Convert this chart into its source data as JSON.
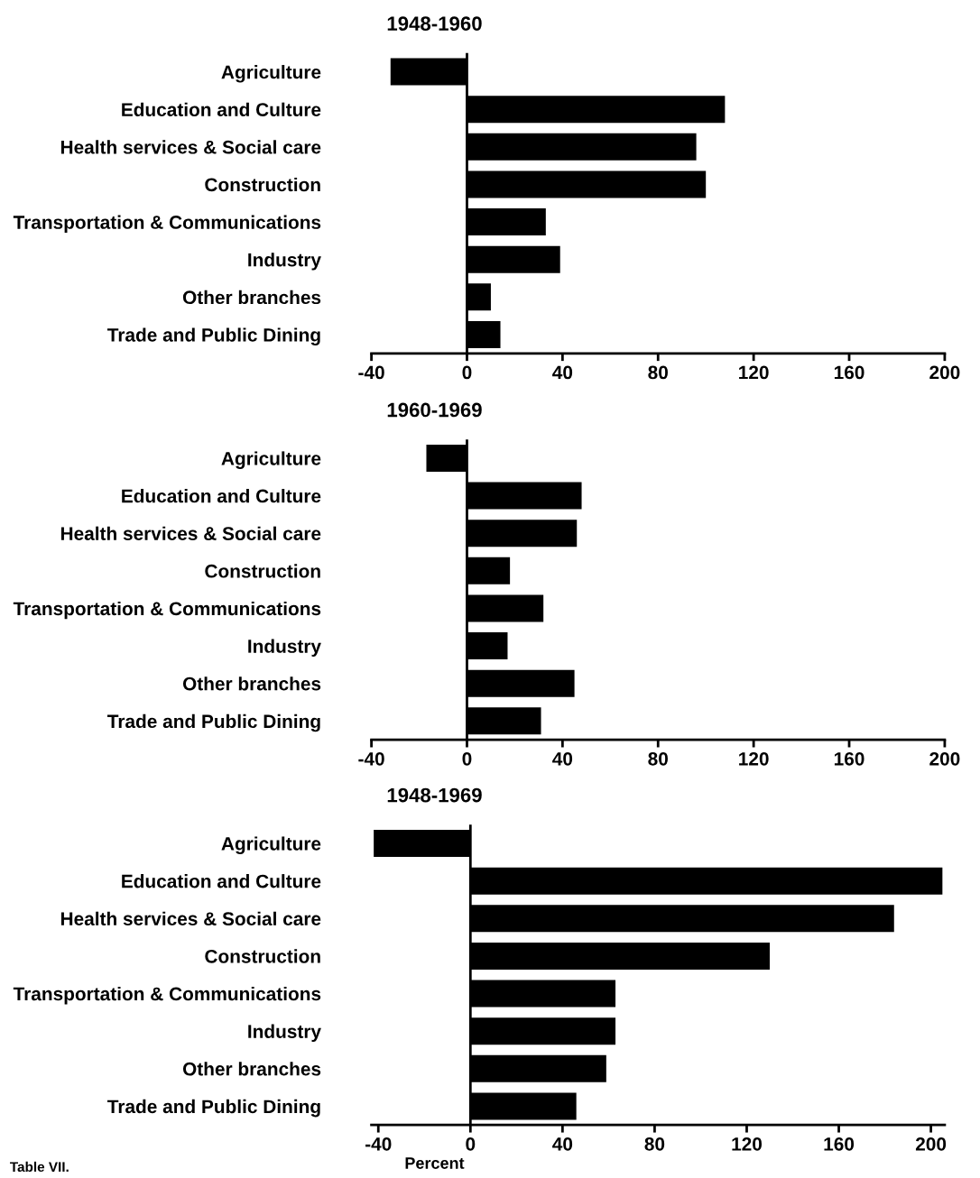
{
  "chart_data": [
    {
      "type": "bar",
      "orientation": "horizontal",
      "title": "1948-1960",
      "categories": [
        "Agriculture",
        "Education and Culture",
        "Health services & Social care",
        "Construction",
        "Transportation & Communications",
        "Industry",
        "Other branches",
        "Trade and Public Dining"
      ],
      "values": [
        -32,
        108,
        96,
        100,
        33,
        39,
        10,
        14
      ],
      "color": "#000000",
      "xlim": [
        -40,
        200
      ],
      "xticks": [
        -40,
        0,
        40,
        80,
        120,
        160,
        200
      ],
      "ref_lines": [
        {
          "axis": "x",
          "value": 0,
          "color": "#000000"
        }
      ],
      "grid": false,
      "legend": false
    },
    {
      "type": "bar",
      "orientation": "horizontal",
      "title": "1960-1969",
      "categories": [
        "Agriculture",
        "Education and Culture",
        "Health services & Social care",
        "Construction",
        "Transportation & Communications",
        "Industry",
        "Other branches",
        "Trade and Public Dining"
      ],
      "values": [
        -17,
        48,
        46,
        18,
        32,
        17,
        45,
        31
      ],
      "color": "#000000",
      "xlim": [
        -40,
        200
      ],
      "xticks": [
        -40,
        0,
        40,
        80,
        120,
        160,
        200
      ],
      "ref_lines": [
        {
          "axis": "x",
          "value": 0,
          "color": "#000000"
        }
      ],
      "grid": false,
      "legend": false
    },
    {
      "type": "bar",
      "orientation": "horizontal",
      "title": "1948-1969",
      "xlabel": "Percent",
      "categories": [
        "Agriculture",
        "Education and Culture",
        "Health services & Social care",
        "Construction",
        "Transportation & Communications",
        "Industry",
        "Other branches",
        "Trade and Public Dining"
      ],
      "values": [
        -42,
        205,
        184,
        130,
        63,
        63,
        59,
        46
      ],
      "color": "#000000",
      "xlim": [
        -43,
        206
      ],
      "xticks": [
        -40,
        0,
        40,
        80,
        120,
        160,
        200
      ],
      "ref_lines": [
        {
          "axis": "x",
          "value": 0,
          "color": "#000000"
        }
      ],
      "grid": false,
      "legend": false,
      "annotations": [
        "Table VII."
      ]
    }
  ]
}
